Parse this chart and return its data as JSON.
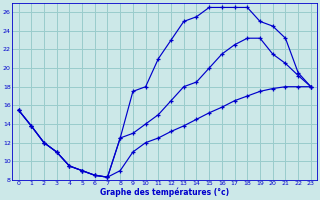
{
  "xlabel": "Graphe des températures (°c)",
  "xlim": [
    -0.5,
    23.5
  ],
  "ylim": [
    8,
    27
  ],
  "xticks": [
    0,
    1,
    2,
    3,
    4,
    5,
    6,
    7,
    8,
    9,
    10,
    11,
    12,
    13,
    14,
    15,
    16,
    17,
    18,
    19,
    20,
    21,
    22,
    23
  ],
  "yticks": [
    8,
    10,
    12,
    14,
    16,
    18,
    20,
    22,
    24,
    26
  ],
  "bg_color": "#cce8e8",
  "grid_color": "#99cccc",
  "line_color": "#0000cc",
  "lines": [
    {
      "x": [
        0,
        1,
        2,
        3,
        4,
        5,
        6,
        7,
        8,
        9,
        10,
        11,
        12,
        13,
        14,
        15,
        16,
        17,
        18,
        19,
        20,
        21,
        22,
        23
      ],
      "y": [
        15.5,
        13.8,
        12.0,
        11.0,
        9.5,
        9.0,
        8.5,
        8.3,
        12.5,
        17.5,
        18.0,
        21.0,
        23.0,
        25.0,
        25.5,
        26.5,
        26.5,
        26.5,
        26.5,
        25.0,
        24.5,
        23.2,
        19.5,
        18.0
      ]
    },
    {
      "x": [
        0,
        1,
        2,
        3,
        4,
        5,
        6,
        7,
        8,
        9,
        10,
        11,
        12,
        13,
        14,
        15,
        16,
        17,
        18,
        19,
        20,
        21,
        22,
        23
      ],
      "y": [
        15.5,
        13.8,
        12.0,
        11.0,
        9.5,
        9.0,
        8.5,
        8.3,
        12.5,
        13.0,
        14.0,
        15.0,
        16.5,
        18.0,
        18.5,
        20.0,
        21.5,
        22.5,
        23.2,
        23.2,
        21.5,
        20.5,
        19.2,
        18.0
      ]
    },
    {
      "x": [
        0,
        1,
        2,
        3,
        4,
        5,
        6,
        7,
        8,
        9,
        10,
        11,
        12,
        13,
        14,
        15,
        16,
        17,
        18,
        19,
        20,
        21,
        22,
        23
      ],
      "y": [
        15.5,
        13.8,
        12.0,
        11.0,
        9.5,
        9.0,
        8.5,
        8.3,
        9.0,
        11.0,
        12.0,
        12.5,
        13.2,
        13.8,
        14.5,
        15.2,
        15.8,
        16.5,
        17.0,
        17.5,
        17.8,
        18.0,
        18.0,
        18.0
      ]
    }
  ]
}
